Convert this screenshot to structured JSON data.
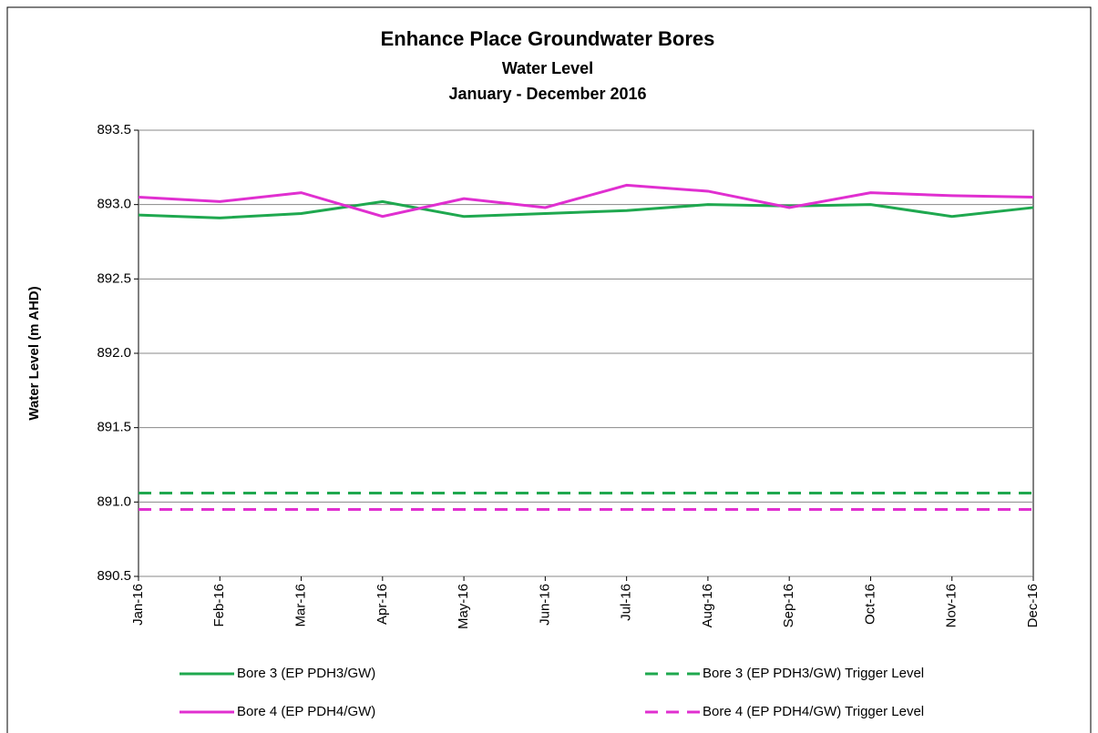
{
  "chart_data": {
    "type": "line",
    "title": "Enhance Place Groundwater Bores",
    "subtitle": [
      "Water Level",
      "January - December 2016"
    ],
    "y_label": "Water Level (m AHD)",
    "categories": [
      "Jan-16",
      "Feb-16",
      "Mar-16",
      "Apr-16",
      "May-16",
      "Jun-16",
      "Jul-16",
      "Aug-16",
      "Sep-16",
      "Oct-16",
      "Nov-16",
      "Dec-16"
    ],
    "series": [
      {
        "name": "Bore 3 (EP PDH3/GW)",
        "color": "#1fa84f",
        "dash": false,
        "values": [
          892.93,
          892.91,
          892.94,
          893.02,
          892.92,
          892.94,
          892.96,
          893.0,
          892.99,
          893.0,
          892.92,
          892.98
        ]
      },
      {
        "name": "Bore 3 (EP PDH3/GW) Trigger Level",
        "color": "#1fa84f",
        "dash": true,
        "values": [
          891.06,
          891.06,
          891.06,
          891.06,
          891.06,
          891.06,
          891.06,
          891.06,
          891.06,
          891.06,
          891.06,
          891.06
        ]
      },
      {
        "name": "Bore 4 (EP PDH4/GW)",
        "color": "#e02fd0",
        "dash": false,
        "values": [
          893.05,
          893.02,
          893.08,
          892.92,
          893.04,
          892.98,
          893.13,
          893.09,
          892.98,
          893.08,
          893.06,
          893.05
        ]
      },
      {
        "name": "Bore 4 (EP PDH4/GW) Trigger Level",
        "color": "#e02fd0",
        "dash": true,
        "values": [
          890.95,
          890.95,
          890.95,
          890.95,
          890.95,
          890.95,
          890.95,
          890.95,
          890.95,
          890.95,
          890.95,
          890.95
        ]
      }
    ],
    "ylim": [
      890.5,
      893.5
    ],
    "yticks": [
      890.5,
      {
        "value": 891,
        "label": "891.0"
      },
      891.5,
      {
        "value": 892,
        "label": "892.0"
      },
      892.5,
      {
        "value": 893,
        "label": "893.0"
      },
      893.5
    ],
    "grid": true
  }
}
